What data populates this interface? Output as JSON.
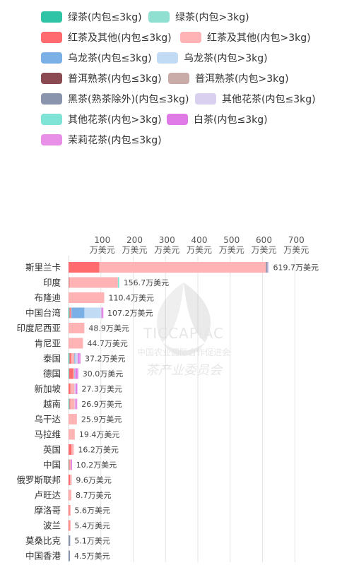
{
  "chart_data": {
    "type": "bar",
    "orientation": "horizontal",
    "stacked": true,
    "title": "",
    "xlabel": "",
    "ylabel": "",
    "xlim": [
      0,
      740
    ],
    "x_ticks": [
      100,
      200,
      300,
      400,
      500,
      600,
      700
    ],
    "x_tick_unit": "万美元",
    "grid": true,
    "legend_position": "top",
    "value_suffix": "万美元",
    "categories": [
      "斯里兰卡",
      "印度",
      "布隆迪",
      "中国台湾",
      "印度尼西亚",
      "肯尼亚",
      "泰国",
      "德国",
      "新加坡",
      "越南",
      "乌干达",
      "马拉维",
      "英国",
      "中国",
      "俄罗斯联邦",
      "卢旺达",
      "摩洛哥",
      "波兰",
      "莫桑比克",
      "中国香港"
    ],
    "totals": [
      619.7,
      156.7,
      110.4,
      107.2,
      48.9,
      44.7,
      37.2,
      30.0,
      27.3,
      26.9,
      25.9,
      19.4,
      16.2,
      10.2,
      9.6,
      8.7,
      5.6,
      5.4,
      5.1,
      4.5
    ],
    "total_labels": [
      "619.7万美元",
      "156.7万美元",
      "110.4万美元",
      "107.2万美元",
      "48.9万美元",
      "44.7万美元",
      "37.2万美元",
      "30.0万美元",
      "27.3万美元",
      "26.9万美元",
      "25.9万美元",
      "19.4万美元",
      "16.2万美元",
      "10.2万美元",
      "9.6万美元",
      "8.7万美元",
      "5.6万美元",
      "5.4万美元",
      "5.1万美元",
      "4.5万美元"
    ],
    "series": [
      {
        "name": "绿茶(内包≤3kg)",
        "color": "#2ec4a5",
        "values": [
          0,
          0,
          0,
          2.0,
          0,
          0,
          2.0,
          1.0,
          0,
          1.0,
          0,
          0,
          0,
          1.0,
          0,
          0,
          0,
          0,
          0,
          0
        ]
      },
      {
        "name": "绿茶(内包>3kg)",
        "color": "#8fe0d0",
        "values": [
          0,
          1.0,
          0,
          1.0,
          0,
          0,
          1.0,
          1.0,
          0,
          2.0,
          0,
          0,
          0,
          0,
          0,
          0,
          0,
          0,
          0,
          0
        ]
      },
      {
        "name": "红茶及其他(内包≤3kg)",
        "color": "#ff6b6f",
        "values": [
          95.0,
          2.0,
          0,
          3.0,
          0,
          0,
          5.0,
          13.0,
          6.0,
          2.0,
          0,
          0,
          9.0,
          2.0,
          5.0,
          1.0,
          3.0,
          3.0,
          0,
          0
        ]
      },
      {
        "name": "红茶及其他(内包>3kg)",
        "color": "#ffb3b5",
        "values": [
          515.7,
          149.7,
          110.4,
          3.0,
          48.9,
          44.7,
          10.2,
          3.0,
          12.3,
          13.9,
          25.9,
          19.4,
          7.2,
          4.2,
          4.6,
          7.7,
          2.6,
          2.4,
          0,
          0
        ]
      },
      {
        "name": "乌龙茶(内包≤3kg)",
        "color": "#7ab0e6",
        "values": [
          0,
          0,
          0,
          40.0,
          0,
          0,
          2.0,
          1.0,
          0,
          0,
          0,
          0,
          0,
          0,
          0,
          0,
          0,
          0,
          0,
          0
        ]
      },
      {
        "name": "乌龙茶(内包>3kg)",
        "color": "#c2dbf5",
        "values": [
          0,
          0,
          0,
          50.0,
          0,
          0,
          3.0,
          0,
          0,
          0,
          0,
          0,
          0,
          0,
          0,
          0,
          0,
          0,
          0,
          0
        ]
      },
      {
        "name": "普洱熟茶(内包≤3kg)",
        "color": "#8b4a52",
        "values": [
          0,
          0,
          0,
          0,
          0,
          0,
          0,
          0,
          0,
          0,
          0,
          0,
          0,
          0,
          0,
          0,
          0,
          0,
          0,
          0
        ]
      },
      {
        "name": "普洱熟茶(内包>3kg)",
        "color": "#c9aca8",
        "values": [
          0,
          0,
          0,
          0,
          0,
          0,
          0,
          0,
          0,
          0,
          0,
          0,
          0,
          0,
          0,
          0,
          0,
          0,
          0,
          0
        ]
      },
      {
        "name": "黑茶(熟茶除外)(内包≤3kg)",
        "color": "#8a95ad",
        "values": [
          5.0,
          0,
          0,
          0,
          0,
          0,
          0,
          0,
          0,
          0,
          0,
          0,
          0,
          0,
          0,
          0,
          0,
          0,
          5.1,
          4.5
        ]
      },
      {
        "name": "其他花茶(内包≤3kg)",
        "color": "#d9cfee",
        "values": [
          4.0,
          0,
          0,
          3.0,
          0,
          0,
          6.0,
          2.0,
          4.0,
          2.0,
          0,
          0,
          0,
          0,
          0,
          0,
          0,
          0,
          0,
          0
        ]
      },
      {
        "name": "其他花茶(内包>3kg)",
        "color": "#7fe3d6",
        "values": [
          0,
          4.0,
          0,
          0,
          0,
          0,
          0,
          0,
          0,
          0,
          0,
          0,
          0,
          0,
          0,
          0,
          0,
          0,
          0,
          0
        ]
      },
      {
        "name": "白茶(内包≤3kg)",
        "color": "#e07ae6",
        "values": [
          0,
          0,
          0,
          2.2,
          0,
          0,
          4.0,
          6.0,
          5.0,
          0,
          0,
          0,
          0,
          3.0,
          0,
          0,
          0,
          0,
          0,
          0
        ]
      },
      {
        "name": "茉莉花茶(内包≤3kg)",
        "color": "#e88fe8",
        "values": [
          0,
          0,
          0,
          3.0,
          0,
          0,
          4.0,
          3.0,
          0,
          6.0,
          0,
          0,
          0,
          0,
          0,
          0,
          0,
          0,
          0,
          0
        ]
      }
    ]
  },
  "watermark": {
    "brand": "TICCAPIAC",
    "line1": "中国农业国际合作促进会",
    "line2": "茶产业委员会"
  }
}
